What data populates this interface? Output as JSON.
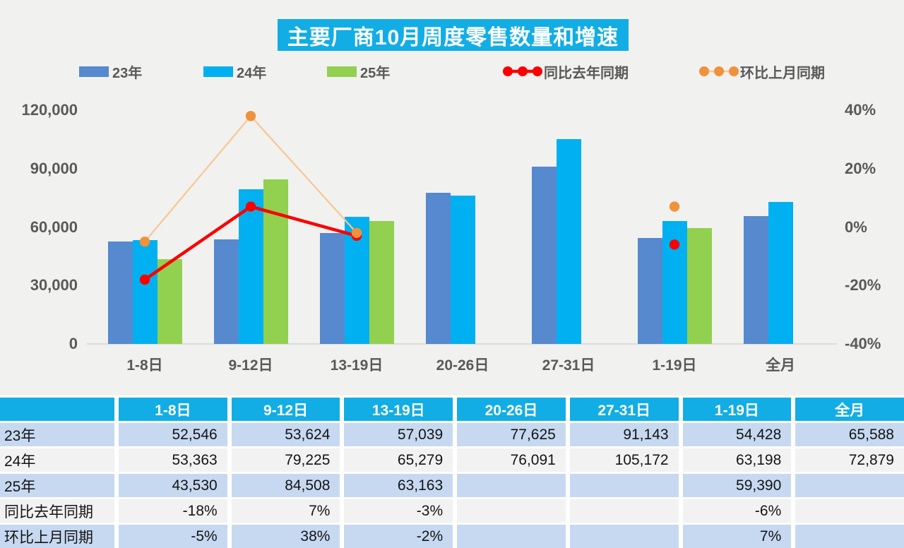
{
  "title": "主要厂商10月周度零售数量和增速",
  "legend": [
    {
      "label": "23年",
      "type": "swatch",
      "color": "#5689ce"
    },
    {
      "label": "24年",
      "type": "swatch",
      "color": "#00b0f0"
    },
    {
      "label": "25年",
      "type": "swatch",
      "color": "#92d050"
    },
    {
      "label": "同比去年同期",
      "type": "line",
      "line_color": "#fa0000",
      "dot_color": "#fa0000"
    },
    {
      "label": "环比上月同期",
      "type": "line",
      "line_color": "#f8c694",
      "dot_color": "#f0913c"
    }
  ],
  "chart_data": {
    "type": "combo-bar-line",
    "title": "主要厂商10月周度零售数量和增速",
    "categories": [
      "1-8日",
      "9-12日",
      "13-19日",
      "20-26日",
      "27-31日",
      "1-19日",
      "全月"
    ],
    "bar_series": [
      {
        "name": "23年",
        "color": "#5689ce",
        "values": [
          52546,
          53624,
          57039,
          77625,
          91143,
          54428,
          65588
        ]
      },
      {
        "name": "24年",
        "color": "#00b0f0",
        "values": [
          53363,
          79225,
          65279,
          76091,
          105172,
          63198,
          72879
        ]
      },
      {
        "name": "25年",
        "color": "#92d050",
        "values": [
          43530,
          84508,
          63163,
          null,
          null,
          59390,
          null
        ]
      }
    ],
    "line_series": [
      {
        "name": "同比去年同期",
        "line_color": "#fa0000",
        "dot_color": "#fa0000",
        "values_pct": [
          -18,
          7,
          -3,
          null,
          null,
          -6,
          null
        ]
      },
      {
        "name": "环比上月同期",
        "line_color": "#f8c694",
        "dot_color": "#f0913c",
        "values_pct": [
          -5,
          38,
          -2,
          null,
          null,
          7,
          null
        ]
      }
    ],
    "left_axis": {
      "label_ticks": [
        "120,000",
        "90,000",
        "60,000",
        "30,000",
        "0"
      ],
      "min": 0,
      "max": 120000
    },
    "right_axis": {
      "label_ticks": [
        "40%",
        "20%",
        "0%",
        "-20%",
        "-40%"
      ],
      "min": -40,
      "max": 40
    },
    "grid": false,
    "legend_position": "top"
  },
  "table": {
    "header": [
      "",
      "1-8日",
      "9-12日",
      "13-19日",
      "20-26日",
      "27-31日",
      "1-19日",
      "全月"
    ],
    "rows": [
      {
        "label": "23年",
        "values": [
          "52,546",
          "53,624",
          "57,039",
          "77,625",
          "91,143",
          "54,428",
          "65,588"
        ]
      },
      {
        "label": "24年",
        "values": [
          "53,363",
          "79,225",
          "65,279",
          "76,091",
          "105,172",
          "63,198",
          "72,879"
        ]
      },
      {
        "label": "25年",
        "values": [
          "43,530",
          "84,508",
          "63,163",
          "",
          "",
          "59,390",
          ""
        ]
      },
      {
        "label": "同比去年同期",
        "values": [
          "-18%",
          "7%",
          "-3%",
          "",
          "",
          "-6%",
          ""
        ]
      },
      {
        "label": "环比上月同期",
        "values": [
          "-5%",
          "38%",
          "-2%",
          "",
          "",
          "7%",
          ""
        ]
      }
    ]
  },
  "colors": {
    "accent_cyan": "#12ade5",
    "bar_blue": "#5689ce",
    "bar_cyan": "#00b0f0",
    "bar_green": "#92d050",
    "line_red": "#fa0000",
    "line_orange": "#f8c694",
    "dot_orange": "#f0913c",
    "row_blue": "#c6d9f1",
    "row_gray": "#f2f2f2",
    "axis_text": "#595959",
    "background": "#f1f1ef"
  }
}
